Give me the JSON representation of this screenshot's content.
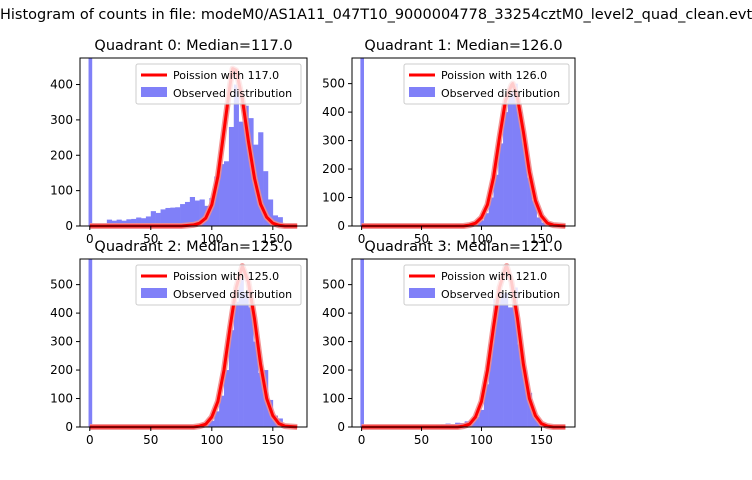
{
  "figure": {
    "suptitle": "Histogram of counts in file: modeM0/AS1A11_047T10_9000004778_33254cztM0_level2_quad_clean.evt"
  },
  "colors": {
    "poisson_line": "#ff0000",
    "poisson_glow": "#f28b8b",
    "histogram_fill": "#8080f8",
    "axis": "#000000"
  },
  "chart_data": [
    {
      "type": "bar",
      "title": "Quadrant 0: Median=117.0",
      "xlabel": "",
      "ylabel": "",
      "xlim": [
        -8,
        178
      ],
      "ylim": [
        0,
        475
      ],
      "xticks": [
        0,
        50,
        100,
        150
      ],
      "yticks": [
        0,
        100,
        200,
        300,
        400
      ],
      "bin_width": 4,
      "zero_bin": 475,
      "bins_x": [
        14,
        18,
        22,
        26,
        30,
        34,
        38,
        42,
        46,
        50,
        54,
        58,
        62,
        66,
        70,
        74,
        78,
        82,
        86,
        90,
        94,
        98,
        102,
        106,
        110,
        114,
        118,
        122,
        126,
        130,
        134,
        138,
        142,
        146,
        150,
        154
      ],
      "bins_y": [
        18,
        15,
        18,
        15,
        19,
        20,
        24,
        22,
        27,
        42,
        37,
        47,
        51,
        52,
        53,
        62,
        68,
        82,
        72,
        75,
        57,
        79,
        140,
        175,
        183,
        280,
        400,
        295,
        340,
        305,
        230,
        265,
        155,
        75,
        30,
        25
      ],
      "series": [
        {
          "name": "Poission with 117.0",
          "kind": "line",
          "x": [
            0,
            75,
            85,
            90,
            95,
            100,
            105,
            110,
            115,
            117,
            120,
            125,
            130,
            135,
            140,
            145,
            150,
            155,
            160,
            170
          ],
          "y": [
            0,
            0,
            3,
            8,
            22,
            60,
            140,
            270,
            400,
            445,
            440,
            360,
            240,
            135,
            62,
            25,
            8,
            2,
            0,
            0
          ]
        },
        {
          "name": "Observed distribution",
          "kind": "histogram"
        }
      ],
      "legend": [
        "Poission with 117.0",
        "Observed distribution"
      ],
      "legend_location": "upper right"
    },
    {
      "type": "bar",
      "title": "Quadrant 1: Median=126.0",
      "xlabel": "",
      "ylabel": "",
      "xlim": [
        -8,
        178
      ],
      "ylim": [
        0,
        590
      ],
      "xticks": [
        0,
        50,
        100,
        150
      ],
      "yticks": [
        0,
        100,
        200,
        300,
        400,
        500
      ],
      "bin_width": 4,
      "zero_bin": 590,
      "bins_x": [
        70,
        74,
        78,
        82,
        86,
        90,
        94,
        98,
        102,
        106,
        110,
        114,
        118,
        122,
        126,
        130,
        134,
        138,
        142,
        146,
        150
      ],
      "bins_y": [
        5,
        4,
        6,
        5,
        8,
        10,
        14,
        20,
        45,
        100,
        180,
        290,
        400,
        490,
        500,
        400,
        290,
        170,
        90,
        30,
        12
      ],
      "series": [
        {
          "name": "Poission with 126.0",
          "kind": "line",
          "x": [
            0,
            85,
            90,
            95,
            100,
            105,
            110,
            115,
            120,
            125,
            126,
            130,
            135,
            140,
            145,
            150,
            155,
            160,
            170
          ],
          "y": [
            0,
            0,
            3,
            10,
            30,
            75,
            170,
            310,
            440,
            495,
            500,
            450,
            330,
            190,
            90,
            35,
            10,
            3,
            0
          ]
        },
        {
          "name": "Observed distribution",
          "kind": "histogram"
        }
      ],
      "legend": [
        "Poission with 126.0",
        "Observed distribution"
      ],
      "legend_location": "upper right"
    },
    {
      "type": "bar",
      "title": "Quadrant 2: Median=125.0",
      "xlabel": "",
      "ylabel": "",
      "xlim": [
        -8,
        178
      ],
      "ylim": [
        0,
        590
      ],
      "xticks": [
        0,
        50,
        100,
        150
      ],
      "yticks": [
        0,
        100,
        200,
        300,
        400,
        500
      ],
      "bin_width": 4,
      "zero_bin": 590,
      "bins_x": [
        90,
        94,
        98,
        102,
        106,
        110,
        114,
        118,
        122,
        126,
        130,
        134,
        138,
        142,
        146,
        150,
        154
      ],
      "bins_y": [
        5,
        10,
        22,
        55,
        110,
        200,
        340,
        440,
        520,
        470,
        420,
        300,
        190,
        200,
        95,
        40,
        30
      ],
      "series": [
        {
          "name": "Poission with 125.0",
          "kind": "line",
          "x": [
            0,
            85,
            90,
            95,
            100,
            105,
            110,
            115,
            120,
            125,
            130,
            135,
            140,
            145,
            150,
            155,
            160,
            170
          ],
          "y": [
            0,
            0,
            3,
            10,
            35,
            90,
            200,
            350,
            490,
            565,
            510,
            380,
            220,
            100,
            40,
            12,
            3,
            0
          ]
        },
        {
          "name": "Observed distribution",
          "kind": "histogram"
        }
      ],
      "legend": [
        "Poission with 125.0",
        "Observed distribution"
      ],
      "legend_location": "upper right"
    },
    {
      "type": "bar",
      "title": "Quadrant 3: Median=121.0",
      "xlabel": "",
      "ylabel": "",
      "xlim": [
        -8,
        178
      ],
      "ylim": [
        0,
        590
      ],
      "xticks": [
        0,
        50,
        100,
        150
      ],
      "yticks": [
        0,
        100,
        200,
        300,
        400,
        500
      ],
      "bin_width": 4,
      "zero_bin": 590,
      "bins_x": [
        58,
        62,
        66,
        70,
        74,
        78,
        82,
        86,
        90,
        94,
        98,
        102,
        106,
        110,
        114,
        118,
        122,
        126,
        130,
        134,
        138,
        142,
        146,
        150
      ],
      "bins_y": [
        4,
        6,
        8,
        12,
        10,
        15,
        14,
        20,
        18,
        35,
        60,
        150,
        290,
        450,
        470,
        470,
        420,
        490,
        290,
        200,
        120,
        50,
        18,
        8
      ],
      "series": [
        {
          "name": "Poission with 121.0",
          "kind": "line",
          "x": [
            0,
            80,
            85,
            90,
            95,
            100,
            105,
            110,
            115,
            120,
            121,
            125,
            130,
            135,
            140,
            145,
            150,
            155,
            160,
            170
          ],
          "y": [
            0,
            0,
            3,
            10,
            35,
            90,
            200,
            350,
            490,
            560,
            565,
            510,
            380,
            220,
            100,
            40,
            12,
            3,
            0,
            0
          ]
        },
        {
          "name": "Observed distribution",
          "kind": "histogram"
        }
      ],
      "legend": [
        "Poission with 121.0",
        "Observed distribution"
      ],
      "legend_location": "upper right"
    }
  ]
}
